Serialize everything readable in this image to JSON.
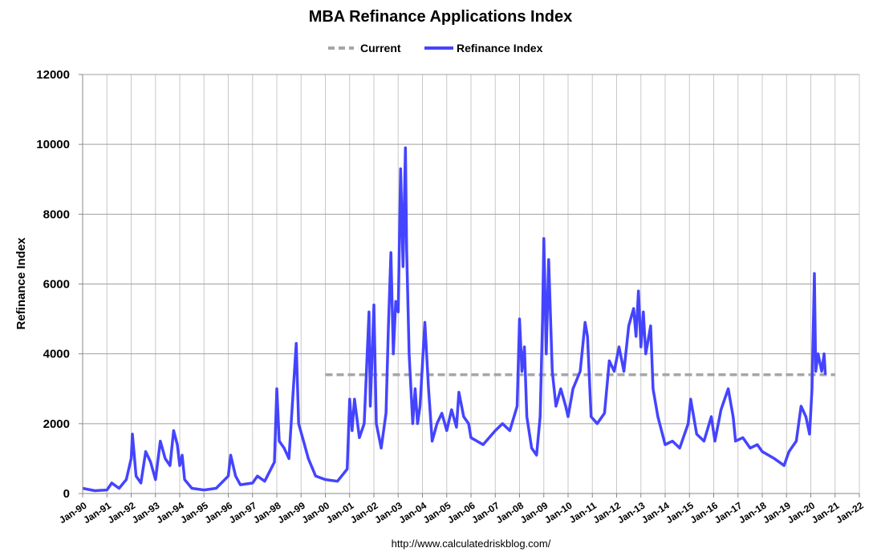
{
  "chart_data": {
    "type": "line",
    "title": "MBA Refinance Applications Index",
    "xlabel": "",
    "ylabel": "Refinance Index",
    "ylim": [
      0,
      12000
    ],
    "xlim": [
      1990,
      2022
    ],
    "yticks": [
      "0",
      "2000",
      "4000",
      "6000",
      "8000",
      "10000",
      "12000"
    ],
    "yticks_values": [
      0,
      2000,
      4000,
      6000,
      8000,
      10000,
      12000
    ],
    "xticks": [
      "Jan-90",
      "Jan-91",
      "Jan-92",
      "Jan-93",
      "Jan-94",
      "Jan-95",
      "Jan-96",
      "Jan-97",
      "Jan-98",
      "Jan-99",
      "Jan-00",
      "Jan-01",
      "Jan-02",
      "Jan-03",
      "Jan-04",
      "Jan-05",
      "Jan-06",
      "Jan-07",
      "Jan-08",
      "Jan-09",
      "Jan-10",
      "Jan-11",
      "Jan-12",
      "Jan-13",
      "Jan-14",
      "Jan-15",
      "Jan-16",
      "Jan-17",
      "Jan-18",
      "Jan-19",
      "Jan-20",
      "Jan-21",
      "Jan-22"
    ],
    "grid": true,
    "legend_placement": "top-center",
    "legend": [
      "Current",
      "Refinance Index"
    ],
    "series": [
      {
        "name": "Current",
        "style": "dashed",
        "color": "#a6a6a6",
        "x": [
          2000.0,
          2021.0
        ],
        "values": [
          3400,
          3400
        ]
      },
      {
        "name": "Refinance Index",
        "style": "solid",
        "color": "#4444ff",
        "x": [
          1990.0,
          1990.5,
          1991.0,
          1991.2,
          1991.5,
          1991.8,
          1992.0,
          1992.05,
          1992.2,
          1992.4,
          1992.6,
          1992.8,
          1993.0,
          1993.2,
          1993.4,
          1993.6,
          1993.75,
          1993.9,
          1994.0,
          1994.1,
          1994.2,
          1994.5,
          1995.0,
          1995.5,
          1996.0,
          1996.1,
          1996.3,
          1996.5,
          1997.0,
          1997.2,
          1997.5,
          1997.9,
          1998.0,
          1998.1,
          1998.3,
          1998.5,
          1998.8,
          1998.9,
          1999.1,
          1999.3,
          1999.6,
          2000.0,
          2000.5,
          2000.9,
          2001.0,
          2001.1,
          2001.2,
          2001.4,
          2001.6,
          2001.8,
          2001.85,
          2002.0,
          2002.1,
          2002.3,
          2002.5,
          2002.6,
          2002.7,
          2002.8,
          2002.9,
          2003.0,
          2003.1,
          2003.2,
          2003.3,
          2003.35,
          2003.45,
          2003.6,
          2003.7,
          2003.8,
          2003.9,
          2004.1,
          2004.25,
          2004.4,
          2004.6,
          2004.8,
          2005.0,
          2005.2,
          2005.4,
          2005.5,
          2005.7,
          2005.9,
          2006.0,
          2006.5,
          2007.0,
          2007.3,
          2007.6,
          2007.9,
          2008.0,
          2008.1,
          2008.2,
          2008.3,
          2008.5,
          2008.7,
          2008.85,
          2008.95,
          2009.0,
          2009.1,
          2009.2,
          2009.35,
          2009.5,
          2009.7,
          2009.9,
          2010.0,
          2010.2,
          2010.5,
          2010.7,
          2010.8,
          2010.95,
          2011.2,
          2011.5,
          2011.7,
          2011.9,
          2012.1,
          2012.3,
          2012.5,
          2012.7,
          2012.8,
          2012.9,
          2013.0,
          2013.1,
          2013.2,
          2013.4,
          2013.5,
          2013.7,
          2014.0,
          2014.3,
          2014.6,
          2014.95,
          2015.05,
          2015.3,
          2015.6,
          2015.9,
          2016.05,
          2016.3,
          2016.6,
          2016.8,
          2016.9,
          2017.2,
          2017.5,
          2017.8,
          2018.0,
          2018.5,
          2018.9,
          2019.1,
          2019.4,
          2019.6,
          2019.8,
          2019.95,
          2020.05,
          2020.15,
          2020.2,
          2020.3,
          2020.45,
          2020.55,
          2020.6
        ],
        "values": [
          150,
          80,
          100,
          300,
          150,
          400,
          1000,
          1700,
          500,
          300,
          1200,
          900,
          400,
          1500,
          1000,
          800,
          1800,
          1400,
          800,
          1100,
          400,
          150,
          100,
          150,
          500,
          1100,
          500,
          250,
          300,
          500,
          350,
          900,
          3000,
          1500,
          1300,
          1000,
          4300,
          2000,
          1500,
          1000,
          500,
          400,
          350,
          700,
          2700,
          1800,
          2700,
          1600,
          2000,
          5200,
          2500,
          5400,
          2000,
          1300,
          2300,
          4800,
          6900,
          4000,
          5500,
          5200,
          9300,
          6500,
          9900,
          7000,
          4000,
          2000,
          3000,
          2000,
          2500,
          4900,
          3000,
          1500,
          2000,
          2300,
          1800,
          2400,
          1900,
          2900,
          2200,
          2000,
          1600,
          1400,
          1800,
          2000,
          1800,
          2500,
          5000,
          3500,
          4200,
          2200,
          1300,
          1100,
          2200,
          5000,
          7300,
          4000,
          6700,
          3500,
          2500,
          3000,
          2500,
          2200,
          3000,
          3500,
          4900,
          4500,
          2200,
          2000,
          2300,
          3800,
          3500,
          4200,
          3500,
          4800,
          5300,
          4500,
          5800,
          4200,
          5200,
          4000,
          4800,
          3000,
          2200,
          1400,
          1500,
          1300,
          2000,
          2700,
          1700,
          1500,
          2200,
          1500,
          2400,
          3000,
          2200,
          1500,
          1600,
          1300,
          1400,
          1200,
          1000,
          800,
          1200,
          1500,
          2500,
          2200,
          1700,
          3000,
          6300,
          3500,
          4000,
          3500,
          4000,
          3400
        ]
      }
    ]
  },
  "footer": {
    "url": "http://www.calculatedriskblog.com/"
  }
}
